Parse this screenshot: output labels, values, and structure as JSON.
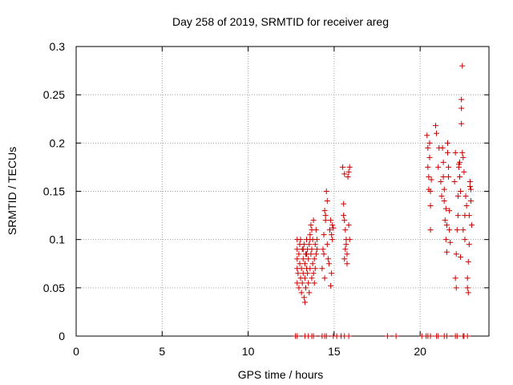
{
  "chart_data": {
    "type": "scatter",
    "title": "Day 258 of 2019, SRMTID for receiver areg",
    "xlabel": "GPS time / hours",
    "ylabel": "SRMTID / TECUs",
    "xlim": [
      0,
      24.0
    ],
    "ylim": [
      0,
      0.3
    ],
    "x_ticks": [
      0,
      5,
      10,
      15,
      20
    ],
    "x_tick_labels": [
      "0",
      "5",
      "10",
      "15",
      "20"
    ],
    "y_ticks": [
      0,
      0.05,
      0.1,
      0.15,
      0.2,
      0.25,
      0.3
    ],
    "y_tick_labels": [
      "0",
      "0.05",
      "0.1",
      "0.15",
      "0.2",
      "0.25",
      "0.3"
    ],
    "grid": true,
    "marker": "+",
    "color": "#cc0000",
    "series": [
      {
        "name": "SRMTID",
        "points": [
          [
            12.75,
            0.0
          ],
          [
            12.85,
            0.0
          ],
          [
            13.3,
            0.0
          ],
          [
            13.5,
            0.0
          ],
          [
            13.7,
            0.0
          ],
          [
            13.8,
            0.0
          ],
          [
            14.3,
            0.0
          ],
          [
            14.45,
            0.0
          ],
          [
            14.55,
            0.0
          ],
          [
            14.95,
            0.0
          ],
          [
            15.15,
            0.0
          ],
          [
            15.4,
            0.0
          ],
          [
            15.6,
            0.0
          ],
          [
            15.85,
            0.0
          ],
          [
            18.1,
            0.0
          ],
          [
            18.6,
            0.0
          ],
          [
            20.1,
            0.0
          ],
          [
            20.35,
            0.0
          ],
          [
            20.45,
            0.0
          ],
          [
            20.6,
            0.0
          ],
          [
            20.95,
            0.0
          ],
          [
            21.05,
            0.0
          ],
          [
            21.4,
            0.0
          ],
          [
            21.55,
            0.0
          ],
          [
            22.05,
            0.0
          ],
          [
            22.15,
            0.0
          ],
          [
            22.5,
            0.0
          ],
          [
            22.55,
            0.0
          ],
          [
            22.75,
            0.0
          ],
          [
            12.85,
            0.1
          ],
          [
            12.85,
            0.09
          ],
          [
            12.85,
            0.08
          ],
          [
            12.85,
            0.07
          ],
          [
            12.85,
            0.055
          ],
          [
            12.9,
            0.065
          ],
          [
            12.95,
            0.085
          ],
          [
            12.95,
            0.05
          ],
          [
            13.0,
            0.095
          ],
          [
            13.0,
            0.075
          ],
          [
            13.05,
            0.06
          ],
          [
            13.05,
            0.1
          ],
          [
            13.1,
            0.045
          ],
          [
            13.1,
            0.07
          ],
          [
            13.15,
            0.09
          ],
          [
            13.15,
            0.055
          ],
          [
            13.2,
            0.08
          ],
          [
            13.2,
            0.065
          ],
          [
            13.25,
            0.095
          ],
          [
            13.25,
            0.04
          ],
          [
            13.3,
            0.035
          ],
          [
            13.3,
            0.075
          ],
          [
            13.3,
            0.06
          ],
          [
            13.35,
            0.085
          ],
          [
            13.35,
            0.05
          ],
          [
            13.4,
            0.07
          ],
          [
            13.4,
            0.1
          ],
          [
            13.45,
            0.09
          ],
          [
            13.45,
            0.065
          ],
          [
            13.5,
            0.055
          ],
          [
            13.5,
            0.08
          ],
          [
            13.55,
            0.095
          ],
          [
            13.55,
            0.045
          ],
          [
            13.6,
            0.07
          ],
          [
            13.6,
            0.105
          ],
          [
            13.65,
            0.115
          ],
          [
            13.65,
            0.085
          ],
          [
            13.7,
            0.06
          ],
          [
            13.7,
            0.09
          ],
          [
            13.75,
            0.075
          ],
          [
            13.75,
            0.1
          ],
          [
            13.8,
            0.065
          ],
          [
            13.8,
            0.12
          ],
          [
            13.85,
            0.08
          ],
          [
            13.85,
            0.055
          ],
          [
            13.9,
            0.095
          ],
          [
            13.9,
            0.07
          ],
          [
            13.95,
            0.11
          ],
          [
            13.95,
            0.085
          ],
          [
            14.0,
            0.1
          ],
          [
            14.0,
            0.09
          ],
          [
            13.6,
            0.1
          ],
          [
            13.4,
            0.085
          ],
          [
            13.7,
            0.11
          ],
          [
            13.2,
            0.09
          ],
          [
            14.3,
            0.07
          ],
          [
            14.35,
            0.09
          ],
          [
            14.4,
            0.085
          ],
          [
            14.4,
            0.105
          ],
          [
            14.45,
            0.06
          ],
          [
            14.5,
            0.12
          ],
          [
            14.5,
            0.125
          ],
          [
            14.55,
            0.15
          ],
          [
            14.6,
            0.095
          ],
          [
            14.6,
            0.14
          ],
          [
            14.65,
            0.08
          ],
          [
            14.7,
            0.075
          ],
          [
            14.75,
            0.11
          ],
          [
            14.8,
            0.12
          ],
          [
            14.8,
            0.052
          ],
          [
            14.85,
            0.065
          ],
          [
            14.9,
            0.1
          ],
          [
            14.9,
            0.115
          ],
          [
            14.95,
            0.112
          ],
          [
            14.85,
            0.105
          ],
          [
            14.45,
            0.13
          ],
          [
            15.5,
            0.175
          ],
          [
            15.55,
            0.137
          ],
          [
            15.55,
            0.125
          ],
          [
            15.6,
            0.12
          ],
          [
            15.65,
            0.11
          ],
          [
            15.65,
            0.09
          ],
          [
            15.6,
            0.08
          ],
          [
            15.7,
            0.1
          ],
          [
            15.7,
            0.095
          ],
          [
            15.75,
            0.085
          ],
          [
            15.75,
            0.075
          ],
          [
            15.8,
            0.165
          ],
          [
            15.85,
            0.17
          ],
          [
            15.85,
            0.115
          ],
          [
            15.9,
            0.175
          ],
          [
            15.9,
            0.1
          ],
          [
            15.6,
            0.168
          ],
          [
            20.4,
            0.208
          ],
          [
            20.45,
            0.195
          ],
          [
            20.45,
            0.175
          ],
          [
            20.5,
            0.165
          ],
          [
            20.5,
            0.152
          ],
          [
            20.55,
            0.2
          ],
          [
            20.55,
            0.185
          ],
          [
            20.6,
            0.15
          ],
          [
            20.6,
            0.135
          ],
          [
            20.6,
            0.11
          ],
          [
            20.65,
            0.162
          ],
          [
            20.9,
            0.218
          ],
          [
            20.95,
            0.21
          ],
          [
            21.05,
            0.175
          ],
          [
            21.1,
            0.195
          ],
          [
            21.2,
            0.16
          ],
          [
            21.25,
            0.145
          ],
          [
            21.3,
            0.195
          ],
          [
            21.35,
            0.18
          ],
          [
            21.35,
            0.165
          ],
          [
            21.4,
            0.152
          ],
          [
            21.4,
            0.14
          ],
          [
            21.45,
            0.12
          ],
          [
            21.5,
            0.132
          ],
          [
            21.5,
            0.1
          ],
          [
            21.55,
            0.087
          ],
          [
            21.55,
            0.115
          ],
          [
            21.6,
            0.2
          ],
          [
            21.6,
            0.19
          ],
          [
            21.65,
            0.175
          ],
          [
            21.65,
            0.165
          ],
          [
            21.7,
            0.13
          ],
          [
            21.7,
            0.11
          ],
          [
            21.75,
            0.097
          ],
          [
            22.0,
            0.16
          ],
          [
            22.05,
            0.19
          ],
          [
            22.05,
            0.06
          ],
          [
            22.1,
            0.05
          ],
          [
            22.1,
            0.085
          ],
          [
            22.15,
            0.11
          ],
          [
            22.2,
            0.125
          ],
          [
            22.2,
            0.145
          ],
          [
            22.25,
            0.178
          ],
          [
            22.25,
            0.175
          ],
          [
            22.3,
            0.165
          ],
          [
            22.3,
            0.18
          ],
          [
            22.35,
            0.082
          ],
          [
            22.35,
            0.15
          ],
          [
            22.4,
            0.22
          ],
          [
            22.4,
            0.245
          ],
          [
            22.4,
            0.236
          ],
          [
            22.45,
            0.28
          ],
          [
            22.45,
            0.19
          ],
          [
            22.5,
            0.185
          ],
          [
            22.5,
            0.11
          ],
          [
            22.55,
            0.17
          ],
          [
            22.6,
            0.125
          ],
          [
            22.6,
            0.1
          ],
          [
            22.65,
            0.145
          ],
          [
            22.7,
            0.135
          ],
          [
            22.75,
            0.06
          ],
          [
            22.75,
            0.05
          ],
          [
            22.8,
            0.077
          ],
          [
            22.8,
            0.045
          ],
          [
            22.85,
            0.095
          ],
          [
            22.85,
            0.125
          ],
          [
            22.9,
            0.16
          ],
          [
            22.9,
            0.155
          ],
          [
            22.95,
            0.152
          ],
          [
            22.95,
            0.14
          ],
          [
            23.0,
            0.115
          ]
        ]
      }
    ]
  }
}
